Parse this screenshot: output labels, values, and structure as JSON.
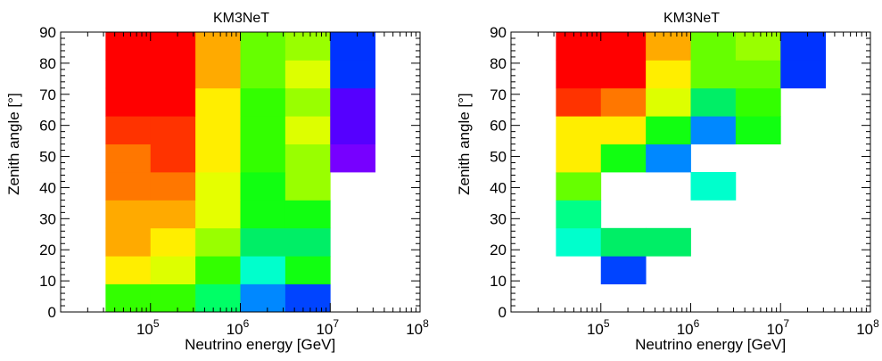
{
  "chart_data": [
    {
      "type": "heatmap",
      "title": "KM3NeT",
      "xlabel": "Neutrino energy [GeV]",
      "ylabel": "Zenith angle [°]",
      "x_scale": "log",
      "x_ticks": [
        {
          "base": "10",
          "exp": "5",
          "value": 100000
        },
        {
          "base": "10",
          "exp": "6",
          "value": 1000000
        },
        {
          "base": "10",
          "exp": "7",
          "value": 10000000
        },
        {
          "base": "10",
          "exp": "8",
          "value": 100000000
        }
      ],
      "ylim": [
        0,
        90
      ],
      "y_ticks": [
        "0",
        "10",
        "20",
        "30",
        "40",
        "50",
        "60",
        "70",
        "80",
        "90"
      ],
      "x_bin_edges_log10": [
        4.5,
        5.0,
        5.5,
        6.0,
        6.5,
        7.0,
        7.5
      ],
      "cells": [
        {
          "x_log10": [
            4.5,
            5.0
          ],
          "y": [
            0,
            9
          ],
          "color": "#33ff00"
        },
        {
          "x_log10": [
            5.0,
            5.5
          ],
          "y": [
            0,
            9
          ],
          "color": "#33ff00"
        },
        {
          "x_log10": [
            5.5,
            6.0
          ],
          "y": [
            0,
            9
          ],
          "color": "#00ff66"
        },
        {
          "x_log10": [
            6.0,
            6.5
          ],
          "y": [
            0,
            9
          ],
          "color": "#0088ff"
        },
        {
          "x_log10": [
            6.5,
            7.0
          ],
          "y": [
            0,
            9
          ],
          "color": "#0044ff"
        },
        {
          "x_log10": [
            4.5,
            5.0
          ],
          "y": [
            9,
            18
          ],
          "color": "#ffee00"
        },
        {
          "x_log10": [
            5.0,
            5.5
          ],
          "y": [
            9,
            18
          ],
          "color": "#ddff00"
        },
        {
          "x_log10": [
            5.5,
            6.0
          ],
          "y": [
            9,
            18
          ],
          "color": "#33ff00"
        },
        {
          "x_log10": [
            6.0,
            6.5
          ],
          "y": [
            9,
            18
          ],
          "color": "#00ffcc"
        },
        {
          "x_log10": [
            6.5,
            7.0
          ],
          "y": [
            9,
            18
          ],
          "color": "#11ff11"
        },
        {
          "x_log10": [
            4.5,
            5.0
          ],
          "y": [
            18,
            27
          ],
          "color": "#ffaa00"
        },
        {
          "x_log10": [
            5.0,
            5.5
          ],
          "y": [
            18,
            27
          ],
          "color": "#ffee00"
        },
        {
          "x_log10": [
            5.5,
            6.0
          ],
          "y": [
            18,
            27
          ],
          "color": "#99ff00"
        },
        {
          "x_log10": [
            6.0,
            6.5
          ],
          "y": [
            18,
            27
          ],
          "color": "#00ee66"
        },
        {
          "x_log10": [
            6.5,
            7.0
          ],
          "y": [
            18,
            27
          ],
          "color": "#00ee66"
        },
        {
          "x_log10": [
            4.5,
            5.0
          ],
          "y": [
            27,
            36
          ],
          "color": "#ffaa00"
        },
        {
          "x_log10": [
            5.0,
            5.5
          ],
          "y": [
            27,
            36
          ],
          "color": "#ffaa00"
        },
        {
          "x_log10": [
            5.5,
            6.0
          ],
          "y": [
            27,
            36
          ],
          "color": "#e5ff00"
        },
        {
          "x_log10": [
            6.0,
            6.5
          ],
          "y": [
            27,
            36
          ],
          "color": "#11ff11"
        },
        {
          "x_log10": [
            6.5,
            7.0
          ],
          "y": [
            27,
            36
          ],
          "color": "#11ff11"
        },
        {
          "x_log10": [
            4.5,
            5.0
          ],
          "y": [
            36,
            45
          ],
          "color": "#ff7700"
        },
        {
          "x_log10": [
            5.0,
            5.5
          ],
          "y": [
            36,
            45
          ],
          "color": "#ff7700"
        },
        {
          "x_log10": [
            5.5,
            6.0
          ],
          "y": [
            36,
            45
          ],
          "color": "#e5ff00"
        },
        {
          "x_log10": [
            6.0,
            6.5
          ],
          "y": [
            36,
            45
          ],
          "color": "#11ff11"
        },
        {
          "x_log10": [
            6.5,
            7.0
          ],
          "y": [
            36,
            45
          ],
          "color": "#99ff00"
        },
        {
          "x_log10": [
            4.5,
            5.0
          ],
          "y": [
            45,
            54
          ],
          "color": "#ff7700"
        },
        {
          "x_log10": [
            5.0,
            5.5
          ],
          "y": [
            45,
            54
          ],
          "color": "#ff3300"
        },
        {
          "x_log10": [
            5.5,
            6.0
          ],
          "y": [
            45,
            54
          ],
          "color": "#ffee00"
        },
        {
          "x_log10": [
            6.0,
            6.5
          ],
          "y": [
            45,
            54
          ],
          "color": "#33ff00"
        },
        {
          "x_log10": [
            6.5,
            7.0
          ],
          "y": [
            45,
            54
          ],
          "color": "#99ff00"
        },
        {
          "x_log10": [
            7.0,
            7.5
          ],
          "y": [
            45,
            54
          ],
          "color": "#7700ff"
        },
        {
          "x_log10": [
            4.5,
            5.0
          ],
          "y": [
            54,
            63
          ],
          "color": "#ff3300"
        },
        {
          "x_log10": [
            5.0,
            5.5
          ],
          "y": [
            54,
            63
          ],
          "color": "#ff3300"
        },
        {
          "x_log10": [
            5.5,
            6.0
          ],
          "y": [
            54,
            63
          ],
          "color": "#ffee00"
        },
        {
          "x_log10": [
            6.0,
            6.5
          ],
          "y": [
            54,
            63
          ],
          "color": "#33ff00"
        },
        {
          "x_log10": [
            6.5,
            7.0
          ],
          "y": [
            54,
            63
          ],
          "color": "#ddff00"
        },
        {
          "x_log10": [
            7.0,
            7.5
          ],
          "y": [
            54,
            63
          ],
          "color": "#5500ff"
        },
        {
          "x_log10": [
            4.5,
            5.0
          ],
          "y": [
            63,
            72
          ],
          "color": "#ff0000"
        },
        {
          "x_log10": [
            5.0,
            5.5
          ],
          "y": [
            63,
            72
          ],
          "color": "#ff0000"
        },
        {
          "x_log10": [
            5.5,
            6.0
          ],
          "y": [
            63,
            72
          ],
          "color": "#ffee00"
        },
        {
          "x_log10": [
            6.0,
            6.5
          ],
          "y": [
            63,
            72
          ],
          "color": "#33ff00"
        },
        {
          "x_log10": [
            6.5,
            7.0
          ],
          "y": [
            63,
            72
          ],
          "color": "#99ff00"
        },
        {
          "x_log10": [
            7.0,
            7.5
          ],
          "y": [
            63,
            72
          ],
          "color": "#5500ff"
        },
        {
          "x_log10": [
            4.5,
            5.0
          ],
          "y": [
            72,
            81
          ],
          "color": "#ff0000"
        },
        {
          "x_log10": [
            5.0,
            5.5
          ],
          "y": [
            72,
            81
          ],
          "color": "#ff0000"
        },
        {
          "x_log10": [
            5.5,
            6.0
          ],
          "y": [
            72,
            81
          ],
          "color": "#ffaa00"
        },
        {
          "x_log10": [
            6.0,
            6.5
          ],
          "y": [
            72,
            81
          ],
          "color": "#66ff00"
        },
        {
          "x_log10": [
            6.5,
            7.0
          ],
          "y": [
            72,
            81
          ],
          "color": "#ddff00"
        },
        {
          "x_log10": [
            7.0,
            7.5
          ],
          "y": [
            72,
            81
          ],
          "color": "#0033ff"
        },
        {
          "x_log10": [
            4.5,
            5.0
          ],
          "y": [
            81,
            90
          ],
          "color": "#ff0000"
        },
        {
          "x_log10": [
            5.0,
            5.5
          ],
          "y": [
            81,
            90
          ],
          "color": "#ff0000"
        },
        {
          "x_log10": [
            5.5,
            6.0
          ],
          "y": [
            81,
            90
          ],
          "color": "#ffaa00"
        },
        {
          "x_log10": [
            6.0,
            6.5
          ],
          "y": [
            81,
            90
          ],
          "color": "#66ff00"
        },
        {
          "x_log10": [
            6.5,
            7.0
          ],
          "y": [
            81,
            90
          ],
          "color": "#99ff00"
        },
        {
          "x_log10": [
            7.0,
            7.5
          ],
          "y": [
            81,
            90
          ],
          "color": "#0033ff"
        }
      ]
    },
    {
      "type": "heatmap",
      "title": "KM3NeT",
      "xlabel": "Neutrino energy [GeV]",
      "ylabel": "Zenith angle [°]",
      "x_scale": "log",
      "x_ticks": [
        {
          "base": "10",
          "exp": "5",
          "value": 100000
        },
        {
          "base": "10",
          "exp": "6",
          "value": 1000000
        },
        {
          "base": "10",
          "exp": "7",
          "value": 10000000
        },
        {
          "base": "10",
          "exp": "8",
          "value": 100000000
        }
      ],
      "ylim": [
        0,
        90
      ],
      "y_ticks": [
        "0",
        "10",
        "20",
        "30",
        "40",
        "50",
        "60",
        "70",
        "80",
        "90"
      ],
      "x_bin_edges_log10": [
        4.5,
        5.0,
        5.5,
        6.0,
        6.5,
        7.0,
        7.5
      ],
      "cells": [
        {
          "x_log10": [
            5.0,
            5.5
          ],
          "y": [
            9,
            18
          ],
          "color": "#0044ff"
        },
        {
          "x_log10": [
            4.5,
            5.0
          ],
          "y": [
            18,
            27
          ],
          "color": "#00ffcc"
        },
        {
          "x_log10": [
            5.0,
            5.5
          ],
          "y": [
            18,
            27
          ],
          "color": "#00ee66"
        },
        {
          "x_log10": [
            5.5,
            6.0
          ],
          "y": [
            18,
            27
          ],
          "color": "#00ee66"
        },
        {
          "x_log10": [
            4.5,
            5.0
          ],
          "y": [
            27,
            36
          ],
          "color": "#00ff88"
        },
        {
          "x_log10": [
            4.5,
            5.0
          ],
          "y": [
            36,
            45
          ],
          "color": "#66ff00"
        },
        {
          "x_log10": [
            6.0,
            6.5
          ],
          "y": [
            36,
            45
          ],
          "color": "#00ffcc"
        },
        {
          "x_log10": [
            4.5,
            5.0
          ],
          "y": [
            45,
            54
          ],
          "color": "#ffee00"
        },
        {
          "x_log10": [
            5.0,
            5.5
          ],
          "y": [
            45,
            54
          ],
          "color": "#11ff11"
        },
        {
          "x_log10": [
            5.5,
            6.0
          ],
          "y": [
            45,
            54
          ],
          "color": "#0088ff"
        },
        {
          "x_log10": [
            4.5,
            5.0
          ],
          "y": [
            54,
            63
          ],
          "color": "#ffee00"
        },
        {
          "x_log10": [
            5.0,
            5.5
          ],
          "y": [
            54,
            63
          ],
          "color": "#ffee00"
        },
        {
          "x_log10": [
            5.5,
            6.0
          ],
          "y": [
            54,
            63
          ],
          "color": "#11ff11"
        },
        {
          "x_log10": [
            6.0,
            6.5
          ],
          "y": [
            54,
            63
          ],
          "color": "#0088ff"
        },
        {
          "x_log10": [
            6.5,
            7.0
          ],
          "y": [
            54,
            63
          ],
          "color": "#11ff11"
        },
        {
          "x_log10": [
            4.5,
            5.0
          ],
          "y": [
            63,
            72
          ],
          "color": "#ff3300"
        },
        {
          "x_log10": [
            5.0,
            5.5
          ],
          "y": [
            63,
            72
          ],
          "color": "#ff7700"
        },
        {
          "x_log10": [
            5.5,
            6.0
          ],
          "y": [
            63,
            72
          ],
          "color": "#ddff00"
        },
        {
          "x_log10": [
            6.0,
            6.5
          ],
          "y": [
            63,
            72
          ],
          "color": "#00ee66"
        },
        {
          "x_log10": [
            6.5,
            7.0
          ],
          "y": [
            63,
            72
          ],
          "color": "#33ff00"
        },
        {
          "x_log10": [
            4.5,
            5.0
          ],
          "y": [
            72,
            81
          ],
          "color": "#ff0000"
        },
        {
          "x_log10": [
            5.0,
            5.5
          ],
          "y": [
            72,
            81
          ],
          "color": "#ff0000"
        },
        {
          "x_log10": [
            5.5,
            6.0
          ],
          "y": [
            72,
            81
          ],
          "color": "#ffee00"
        },
        {
          "x_log10": [
            6.0,
            6.5
          ],
          "y": [
            72,
            81
          ],
          "color": "#66ff00"
        },
        {
          "x_log10": [
            6.5,
            7.0
          ],
          "y": [
            72,
            81
          ],
          "color": "#66ff00"
        },
        {
          "x_log10": [
            7.0,
            7.5
          ],
          "y": [
            72,
            81
          ],
          "color": "#0033ff"
        },
        {
          "x_log10": [
            4.5,
            5.0
          ],
          "y": [
            81,
            90
          ],
          "color": "#ff0000"
        },
        {
          "x_log10": [
            5.0,
            5.5
          ],
          "y": [
            81,
            90
          ],
          "color": "#ff0000"
        },
        {
          "x_log10": [
            5.5,
            6.0
          ],
          "y": [
            81,
            90
          ],
          "color": "#ffaa00"
        },
        {
          "x_log10": [
            6.0,
            6.5
          ],
          "y": [
            81,
            90
          ],
          "color": "#66ff00"
        },
        {
          "x_log10": [
            6.5,
            7.0
          ],
          "y": [
            81,
            90
          ],
          "color": "#99ff00"
        },
        {
          "x_log10": [
            7.0,
            7.5
          ],
          "y": [
            81,
            90
          ],
          "color": "#0033ff"
        }
      ]
    }
  ]
}
